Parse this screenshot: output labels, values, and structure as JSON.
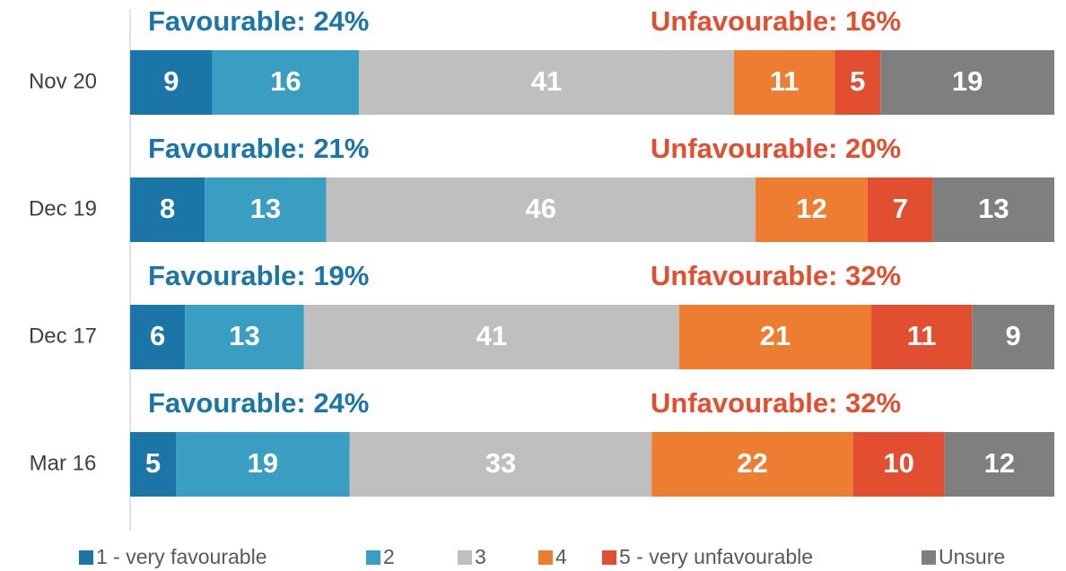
{
  "chart_data": {
    "type": "stacked_bar_horizontal",
    "categories": [
      "Nov 20",
      "Dec 19",
      "Dec 17",
      "Mar 16"
    ],
    "series": [
      {
        "name": "1 - very favourable",
        "color": "#1b75a6",
        "values": [
          9,
          8,
          6,
          5
        ]
      },
      {
        "name": "2",
        "color": "#3a9dc2",
        "values": [
          16,
          13,
          13,
          19
        ]
      },
      {
        "name": "3",
        "color": "#bfbfbf",
        "values": [
          41,
          46,
          41,
          33
        ]
      },
      {
        "name": "4",
        "color": "#ed7d31",
        "values": [
          11,
          12,
          21,
          22
        ]
      },
      {
        "name": "5 - very unfavourable",
        "color": "#e24f30",
        "values": [
          5,
          7,
          11,
          10
        ]
      },
      {
        "name": "Unsure",
        "color": "#7f7f7f",
        "values": [
          19,
          13,
          9,
          12
        ]
      }
    ],
    "favourable_labels": [
      "Favourable: 24%",
      "Favourable: 21%",
      "Favourable: 19%",
      "Favourable: 24%"
    ],
    "unfavourable_labels": [
      "Unfavourable: 16%",
      "Unfavourable: 20%",
      "Unfavourable: 32%",
      "Unfavourable: 32%"
    ],
    "favourable_color": "#1b75a6",
    "unfavourable_color": "#e24f30",
    "legend": "bottom"
  }
}
